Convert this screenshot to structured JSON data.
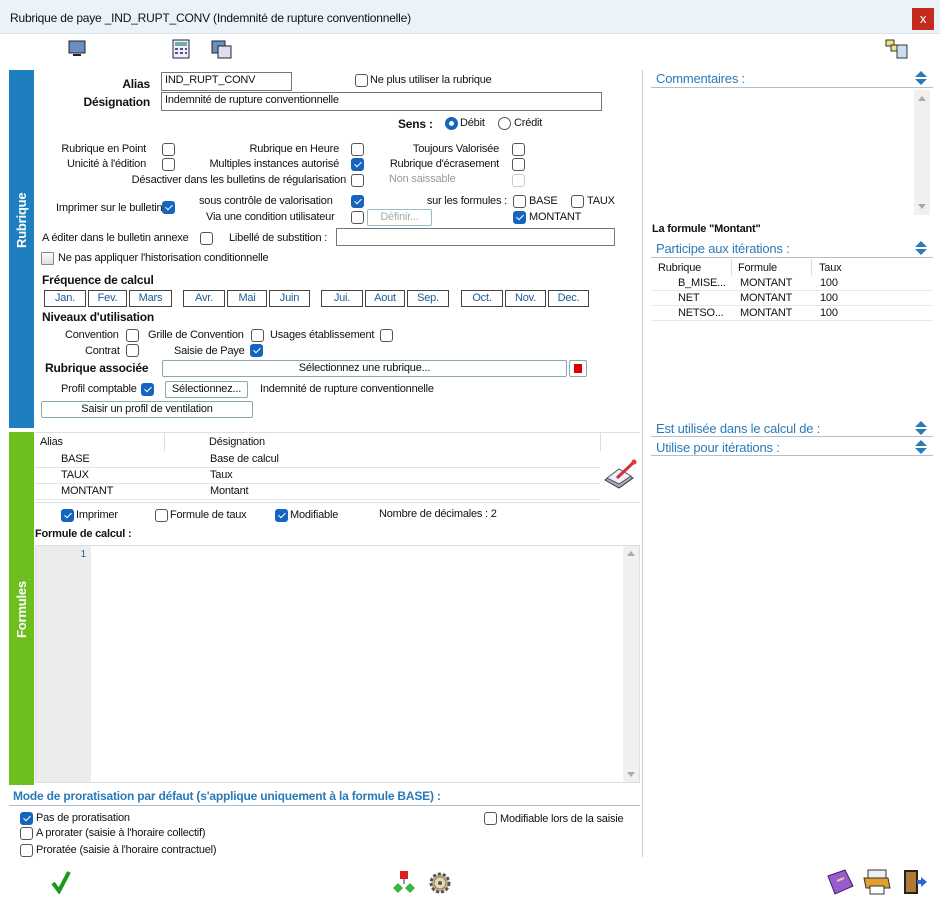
{
  "window": {
    "title": "Rubrique de paye _IND_RUPT_CONV (Indemnité de rupture conventionnelle)",
    "close": "x"
  },
  "toolbar": {
    "icons": [
      "monitor-icon",
      "calculator-icon",
      "window-copy-icon",
      "duplicate-icon"
    ]
  },
  "rubrique": {
    "tab_label": "Rubrique",
    "alias_label": "Alias",
    "alias_value": "IND_RUPT_CONV",
    "ne_plus_utiliser": {
      "label": "Ne plus utiliser la rubrique",
      "checked": false
    },
    "designation_label": "Désignation",
    "designation_value": "Indemnité de rupture conventionnelle",
    "sens_label": "Sens :",
    "sens_options": [
      "Débit",
      "Crédit"
    ],
    "sens_selected": "Débit",
    "flags": {
      "rubrique_en_point": {
        "label": "Rubrique en Point",
        "checked": false
      },
      "rubrique_en_heure": {
        "label": "Rubrique en Heure",
        "checked": false
      },
      "toujours_valorisee": {
        "label": "Toujours Valorisée",
        "checked": false
      },
      "unicite_edition": {
        "label": "Unicité à l'édition",
        "checked": false
      },
      "multiples_instances": {
        "label": "Multiples instances autorisé",
        "checked": true
      },
      "rubrique_ecrasement": {
        "label": "Rubrique d'écrasement",
        "checked": false
      },
      "desactiver_regularisation": {
        "label": "Désactiver dans les bulletins de régularisation",
        "checked": false
      },
      "non_saissable": {
        "label": "Non saissable",
        "checked": false,
        "disabled": true
      },
      "imprimer_bulletin": {
        "label": "Imprimer sur le bulletin",
        "checked": true
      },
      "sous_controle": {
        "label": "sous contrôle de valorisation",
        "checked": true
      },
      "via_condition": {
        "label": "Via une condition utilisateur",
        "checked": false
      },
      "definir_button": "Définir...",
      "sur_les_formules": "sur les formules :",
      "base": {
        "label": "BASE",
        "checked": false
      },
      "taux": {
        "label": "TAUX",
        "checked": false
      },
      "montant": {
        "label": "MONTANT",
        "checked": true
      },
      "bulletin_annexe": {
        "label": "A éditer dans le bulletin annexe",
        "checked": false
      },
      "libelle_substition_label": "Libellé de substition :",
      "libelle_substition_value": "",
      "historisation": {
        "label": "Ne pas appliquer l'historisation conditionnelle",
        "checked": false
      }
    },
    "frequence_label": "Fréquence de calcul",
    "months": [
      "Jan.",
      "Fev.",
      "Mars",
      "Avr.",
      "Mai",
      "Juin",
      "Jui.",
      "Aout",
      "Sep.",
      "Oct.",
      "Nov.",
      "Dec."
    ],
    "niveaux_label": "Niveaux d'utilisation",
    "niveaux": {
      "convention": {
        "label": "Convention",
        "checked": false
      },
      "grille": {
        "label": "Grille de Convention",
        "checked": false
      },
      "usages": {
        "label": "Usages établissement",
        "checked": false
      },
      "contrat": {
        "label": "Contrat",
        "checked": false
      },
      "saisie": {
        "label": "Saisie de Paye",
        "checked": true
      }
    },
    "rubrique_associee_label": "Rubrique associée",
    "rubrique_associee_button": "Sélectionnez une rubrique...",
    "profil_comptable": {
      "label": "Profil comptable",
      "checked": true,
      "button": "Sélectionnez...",
      "value": "Indemnité de rupture conventionnelle"
    },
    "ventilation_button": "Saisir un profil de ventilation"
  },
  "formules": {
    "tab_label": "Formules",
    "columns": [
      "Alias",
      "Désignation"
    ],
    "rows": [
      {
        "alias": "BASE",
        "designation": "Base de calcul"
      },
      {
        "alias": "TAUX",
        "designation": "Taux"
      },
      {
        "alias": "MONTANT",
        "designation": "Montant"
      }
    ],
    "imprimer": {
      "label": "Imprimer",
      "checked": true
    },
    "formule_taux": {
      "label": "Formule de taux",
      "checked": false
    },
    "modifiable": {
      "label": "Modifiable",
      "checked": true
    },
    "decimales": "Nombre de décimales : 2",
    "formule_calcul_label": "Formule de calcul :",
    "line_number": "1",
    "code": ""
  },
  "proratisation": {
    "title": "Mode de proratisation par défaut (s'applique uniquement à la formule BASE) :",
    "options": [
      {
        "label": "Pas de proratisation",
        "checked": true
      },
      {
        "label": "A prorater (saisie à l'horaire collectif)",
        "checked": false
      },
      {
        "label": "Proratée (saisie à l'horaire contractuel)",
        "checked": false
      }
    ],
    "modifiable_saisie": {
      "label": "Modifiable lors de la saisie",
      "checked": false
    }
  },
  "right": {
    "commentaires": "Commentaires :",
    "commentaires_value": "",
    "formule_title": "La formule \"Montant\"",
    "participe": "Participe aux itérations :",
    "columns": [
      "Rubrique",
      "Formule",
      "Taux"
    ],
    "rows": [
      {
        "rubrique": "B_MISE...",
        "formule": "MONTANT",
        "taux": "100"
      },
      {
        "rubrique": "NET",
        "formule": "MONTANT",
        "taux": "100"
      },
      {
        "rubrique": "NETSO...",
        "formule": "MONTANT",
        "taux": "100"
      }
    ],
    "est_utilisee": "Est utilisée dans le calcul de :",
    "utilise_iterations": "Utilise pour itérations :"
  },
  "colors": {
    "rubrique_tab": "#1e7fc0",
    "formules_tab": "#6cbf1f",
    "section_title": "#2a7ab8",
    "check": "#1565c0"
  }
}
